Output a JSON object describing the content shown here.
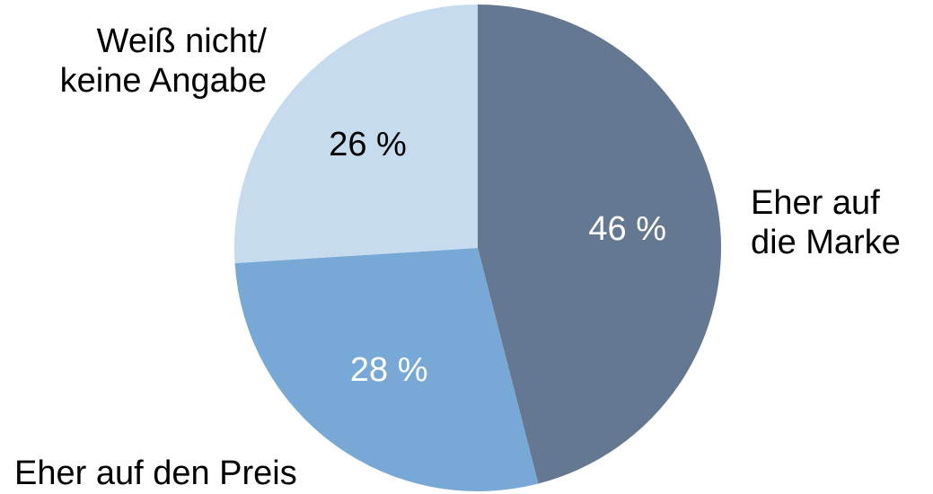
{
  "chart_data": {
    "type": "pie",
    "slices": [
      {
        "label_lines": [
          "Eher auf",
          "die Marke"
        ],
        "value": 46,
        "value_label": "46 %",
        "color": "#657892",
        "value_label_color": "#ffffff"
      },
      {
        "label_lines": [
          "Eher auf den Preis"
        ],
        "value": 28,
        "value_label": "28 %",
        "color": "#78a9d6",
        "value_label_color": "#ffffff"
      },
      {
        "label_lines": [
          "Weiß nicht/",
          "keine Angabe"
        ],
        "value": 26,
        "value_label": "26 %",
        "color": "#c6dbee",
        "value_label_color": "#000000"
      }
    ],
    "start_angle_deg": 0,
    "direction": "clockwise",
    "legend": "none"
  }
}
